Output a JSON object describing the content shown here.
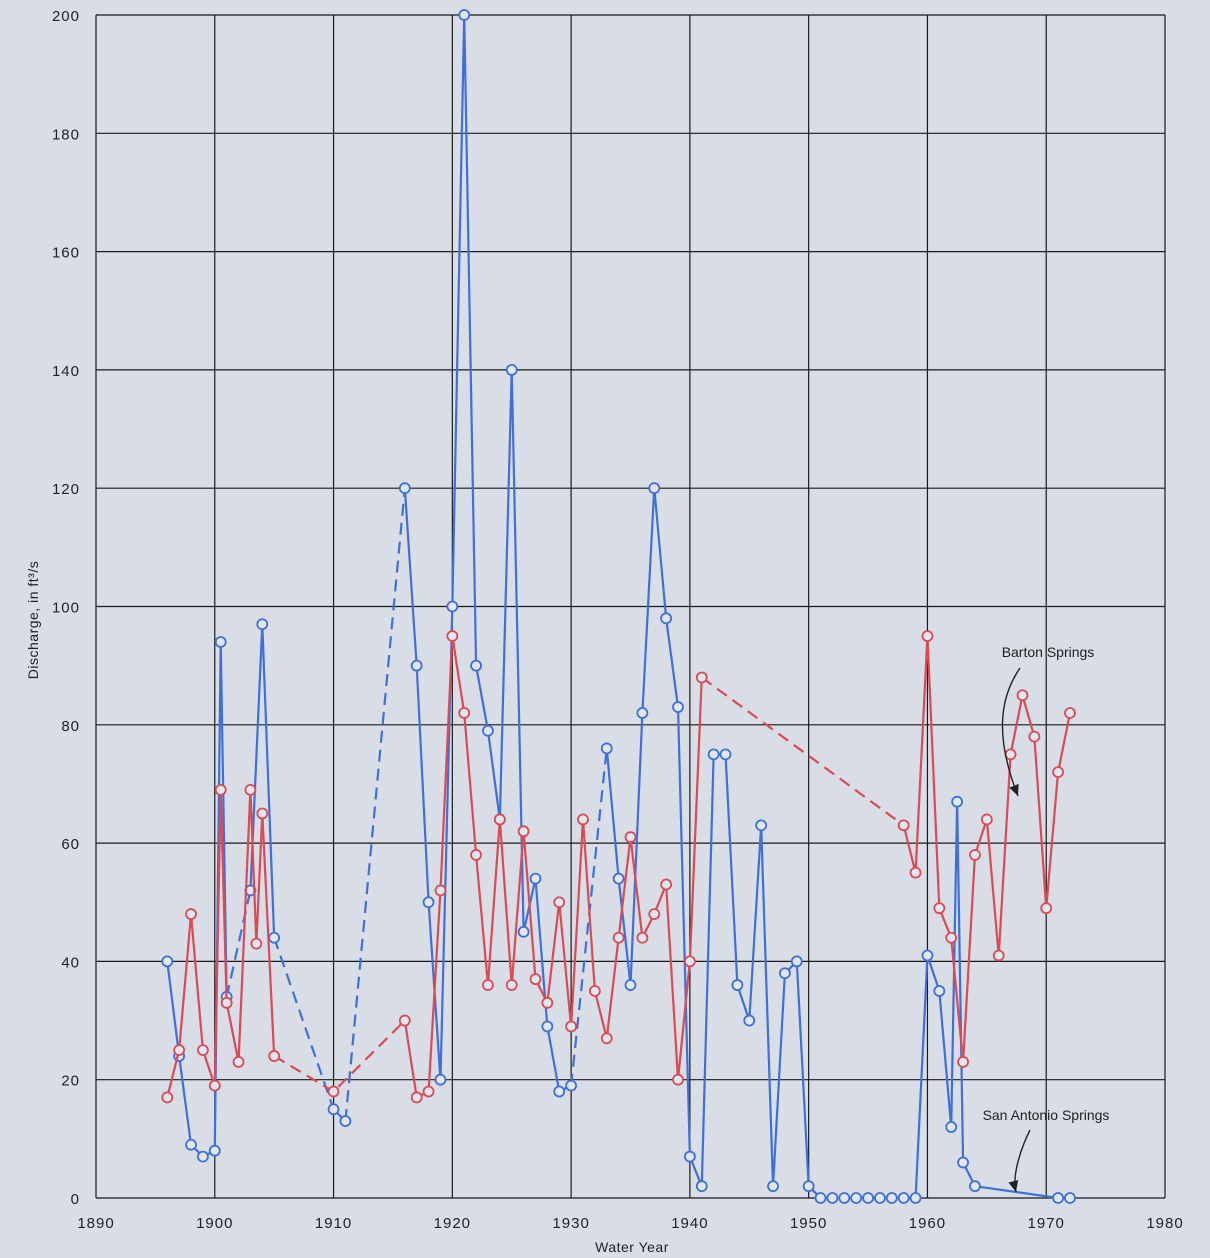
{
  "chart_data": {
    "type": "line",
    "xlabel": "Water Year",
    "ylabel": "Discharge, in ft³/s",
    "xlim": [
      1890,
      1980
    ],
    "ylim": [
      0,
      200
    ],
    "xticks": [
      1890,
      1900,
      1910,
      1920,
      1930,
      1940,
      1950,
      1960,
      1970,
      1980
    ],
    "yticks": [
      0,
      20,
      40,
      60,
      80,
      100,
      120,
      140,
      160,
      180,
      200
    ],
    "grid": true,
    "colors": {
      "blue": "#3f6fd8",
      "red": "#d94b55",
      "background": "#d9dde6",
      "grid": "#1a1a1a"
    },
    "series": [
      {
        "name": "San Antonio Springs",
        "color": "#3f6fd8",
        "segments": [
          {
            "style": "solid",
            "points": [
              [
                1896,
                40
              ],
              [
                1897,
                24
              ],
              [
                1898,
                9
              ],
              [
                1899,
                7
              ],
              [
                1900,
                8
              ],
              [
                1900.5,
                94
              ],
              [
                1901,
                34
              ]
            ]
          },
          {
            "style": "dashed",
            "points": [
              [
                1901,
                34
              ],
              [
                1903,
                52
              ]
            ]
          },
          {
            "style": "solid",
            "points": [
              [
                1903,
                52
              ],
              [
                1904,
                97
              ],
              [
                1905,
                44
              ]
            ]
          },
          {
            "style": "dashed",
            "points": [
              [
                1905,
                44
              ],
              [
                1910,
                15
              ]
            ]
          },
          {
            "style": "solid",
            "points": [
              [
                1910,
                15
              ],
              [
                1911,
                13
              ]
            ]
          },
          {
            "style": "dashed",
            "points": [
              [
                1911,
                13
              ],
              [
                1916,
                120
              ]
            ]
          },
          {
            "style": "solid",
            "points": [
              [
                1916,
                120
              ],
              [
                1917,
                90
              ],
              [
                1918,
                50
              ],
              [
                1919,
                20
              ],
              [
                1920,
                100
              ],
              [
                1921,
                200
              ],
              [
                1922,
                90
              ],
              [
                1923,
                79
              ],
              [
                1924,
                64
              ],
              [
                1925,
                140
              ],
              [
                1926,
                45
              ],
              [
                1927,
                54
              ],
              [
                1928,
                29
              ],
              [
                1929,
                18
              ],
              [
                1930,
                19
              ]
            ]
          },
          {
            "style": "dashed",
            "points": [
              [
                1930,
                19
              ],
              [
                1933,
                76
              ]
            ]
          },
          {
            "style": "solid",
            "points": [
              [
                1933,
                76
              ],
              [
                1934,
                54
              ],
              [
                1935,
                36
              ],
              [
                1936,
                82
              ],
              [
                1937,
                120
              ],
              [
                1938,
                98
              ],
              [
                1939,
                83
              ],
              [
                1940,
                7
              ],
              [
                1941,
                2
              ],
              [
                1942,
                75
              ],
              [
                1943,
                75
              ],
              [
                1944,
                36
              ],
              [
                1945,
                30
              ],
              [
                1946,
                63
              ],
              [
                1947,
                2
              ],
              [
                1948,
                38
              ],
              [
                1949,
                40
              ],
              [
                1950,
                2
              ],
              [
                1951,
                0
              ],
              [
                1952,
                0
              ],
              [
                1953,
                0
              ],
              [
                1954,
                0
              ],
              [
                1955,
                0
              ],
              [
                1956,
                0
              ],
              [
                1957,
                0
              ],
              [
                1958,
                0
              ],
              [
                1959,
                0
              ],
              [
                1960,
                41
              ],
              [
                1961,
                35
              ],
              [
                1962,
                12
              ],
              [
                1962.5,
                67
              ],
              [
                1963,
                6
              ],
              [
                1964,
                2
              ],
              [
                1971,
                0
              ],
              [
                1972,
                0
              ]
            ]
          }
        ]
      },
      {
        "name": "Barton Springs",
        "color": "#d94b55",
        "segments": [
          {
            "style": "solid",
            "points": [
              [
                1896,
                17
              ],
              [
                1897,
                25
              ],
              [
                1898,
                48
              ],
              [
                1899,
                25
              ],
              [
                1900,
                19
              ],
              [
                1900.5,
                69
              ],
              [
                1901,
                33
              ],
              [
                1902,
                23
              ],
              [
                1903,
                69
              ],
              [
                1903.5,
                43
              ],
              [
                1904,
                65
              ],
              [
                1905,
                24
              ]
            ]
          },
          {
            "style": "dashed",
            "points": [
              [
                1905,
                24
              ],
              [
                1910,
                18
              ],
              [
                1916,
                30
              ]
            ]
          },
          {
            "style": "solid",
            "points": [
              [
                1916,
                30
              ],
              [
                1917,
                17
              ],
              [
                1918,
                18
              ],
              [
                1919,
                52
              ],
              [
                1920,
                95
              ],
              [
                1921,
                82
              ],
              [
                1922,
                58
              ],
              [
                1923,
                36
              ],
              [
                1924,
                64
              ],
              [
                1925,
                36
              ],
              [
                1926,
                62
              ],
              [
                1927,
                37
              ],
              [
                1928,
                33
              ],
              [
                1929,
                50
              ],
              [
                1930,
                29
              ],
              [
                1931,
                64
              ],
              [
                1932,
                35
              ],
              [
                1933,
                27
              ],
              [
                1934,
                44
              ],
              [
                1935,
                61
              ],
              [
                1936,
                44
              ],
              [
                1937,
                48
              ],
              [
                1938,
                53
              ],
              [
                1939,
                20
              ],
              [
                1940,
                40
              ],
              [
                1941,
                88
              ]
            ]
          },
          {
            "style": "dashed",
            "points": [
              [
                1941,
                88
              ],
              [
                1958,
                63
              ]
            ]
          },
          {
            "style": "solid",
            "points": [
              [
                1958,
                63
              ],
              [
                1959,
                55
              ],
              [
                1960,
                95
              ],
              [
                1961,
                49
              ],
              [
                1962,
                44
              ],
              [
                1963,
                23
              ],
              [
                1964,
                58
              ],
              [
                1965,
                64
              ],
              [
                1966,
                41
              ],
              [
                1967,
                75
              ],
              [
                1968,
                85
              ],
              [
                1969,
                78
              ],
              [
                1970,
                49
              ],
              [
                1971,
                72
              ],
              [
                1972,
                82
              ]
            ]
          }
        ]
      }
    ],
    "annotations": [
      {
        "text": "Barton Springs",
        "for": "Barton Springs"
      },
      {
        "text": "San Antonio Springs",
        "for": "San Antonio Springs"
      }
    ]
  }
}
